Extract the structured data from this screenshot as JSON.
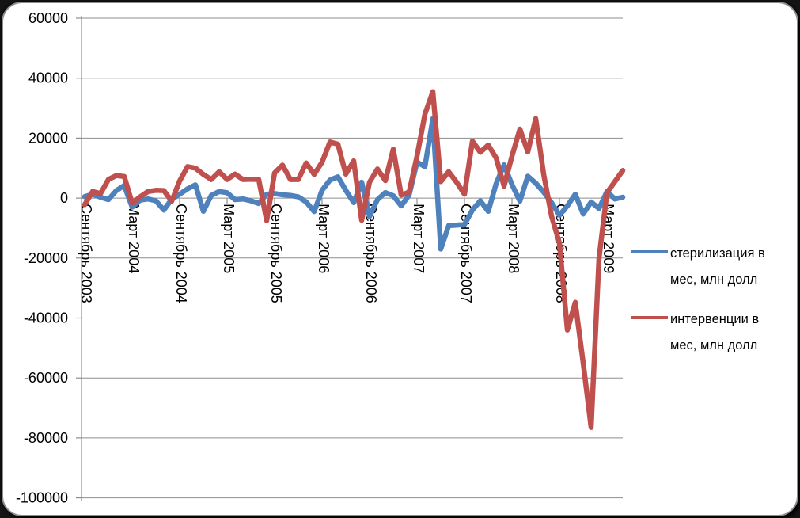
{
  "chart_data": {
    "type": "line",
    "title": "",
    "xlabel": "",
    "ylabel": "",
    "ylim": [
      -100000,
      60000
    ],
    "ytick_step": 20000,
    "y_tick_labels": [
      "60000",
      "40000",
      "20000",
      "0",
      "-20000",
      "-40000",
      "-60000",
      "-80000",
      "-100000"
    ],
    "grid": true,
    "legend_position": "right",
    "x_tick_interval": 6,
    "x_labels_visible": [
      "Сентябрь 2003",
      "Март 2004",
      "Сентябрь 2004",
      "Март 2005",
      "Сентябрь 2005",
      "Март 2006",
      "Сентябрь 2006",
      "Март 2007",
      "Сентябрь 2007",
      "Март 2008",
      "Сентябрь 2008",
      "Март 2009"
    ],
    "x": [
      "2003-09",
      "2003-10",
      "2003-11",
      "2003-12",
      "2004-01",
      "2004-02",
      "2004-03",
      "2004-04",
      "2004-05",
      "2004-06",
      "2004-07",
      "2004-08",
      "2004-09",
      "2004-10",
      "2004-11",
      "2004-12",
      "2005-01",
      "2005-02",
      "2005-03",
      "2005-04",
      "2005-05",
      "2005-06",
      "2005-07",
      "2005-08",
      "2005-09",
      "2005-10",
      "2005-11",
      "2005-12",
      "2006-01",
      "2006-02",
      "2006-03",
      "2006-04",
      "2006-05",
      "2006-06",
      "2006-07",
      "2006-08",
      "2006-09",
      "2006-10",
      "2006-11",
      "2006-12",
      "2007-01",
      "2007-02",
      "2007-03",
      "2007-04",
      "2007-05",
      "2007-06",
      "2007-07",
      "2007-08",
      "2007-09",
      "2007-10",
      "2007-11",
      "2007-12",
      "2008-01",
      "2008-02",
      "2008-03",
      "2008-04",
      "2008-05",
      "2008-06",
      "2008-07",
      "2008-08",
      "2008-09",
      "2008-10",
      "2008-11",
      "2008-12",
      "2009-01",
      "2009-02",
      "2009-03",
      "2009-04",
      "2009-05"
    ],
    "series": [
      {
        "id": "sterilization",
        "name": "стерилизация в мес, млн долл",
        "color": "#4F81BD",
        "values": [
          500,
          1300,
          300,
          -500,
          2500,
          4200,
          -3000,
          -700,
          -300,
          -900,
          -4000,
          -400,
          1300,
          3100,
          4400,
          -4400,
          900,
          2200,
          1800,
          -500,
          -300,
          -900,
          -1800,
          1300,
          1500,
          1100,
          900,
          400,
          -1300,
          -4500,
          2600,
          6000,
          7100,
          2600,
          -1500,
          5300,
          -6100,
          -500,
          1850,
          800,
          -2600,
          1000,
          12000,
          10500,
          26500,
          -17000,
          -9200,
          -9000,
          -8800,
          -4000,
          -900,
          -4400,
          4800,
          11100,
          4500,
          -1000,
          7300,
          5000,
          2000,
          -1500,
          -5700,
          -2600,
          1300,
          -5300,
          -1300,
          -3500,
          2200,
          -300,
          300
        ]
      },
      {
        "id": "interventions",
        "name": "интервенции в мес, млн долл",
        "color": "#C0504D",
        "values": [
          -2200,
          2200,
          1500,
          6200,
          7500,
          7200,
          -1700,
          400,
          2200,
          2600,
          2500,
          -1000,
          5700,
          10500,
          10000,
          7900,
          6200,
          8800,
          6200,
          8000,
          6200,
          6300,
          6200,
          -7500,
          8400,
          11000,
          6200,
          6200,
          11700,
          7900,
          12000,
          18700,
          18000,
          8000,
          12400,
          -7400,
          5300,
          9700,
          5800,
          16300,
          1000,
          2000,
          14000,
          28000,
          35500,
          5500,
          8800,
          5300,
          1300,
          19000,
          15300,
          17700,
          13400,
          4000,
          14000,
          23000,
          15400,
          26500,
          8000,
          -6000,
          -15000,
          -44000,
          -34800,
          -55000,
          -76500,
          -20000,
          1800,
          5500,
          9200
        ]
      }
    ]
  },
  "legend": {
    "items": [
      {
        "line1": "стерилизация в",
        "line2": "мес, млн долл",
        "color": "#4F81BD"
      },
      {
        "line1": "интервенции в",
        "line2": "мес, млн долл",
        "color": "#C0504D"
      }
    ]
  }
}
